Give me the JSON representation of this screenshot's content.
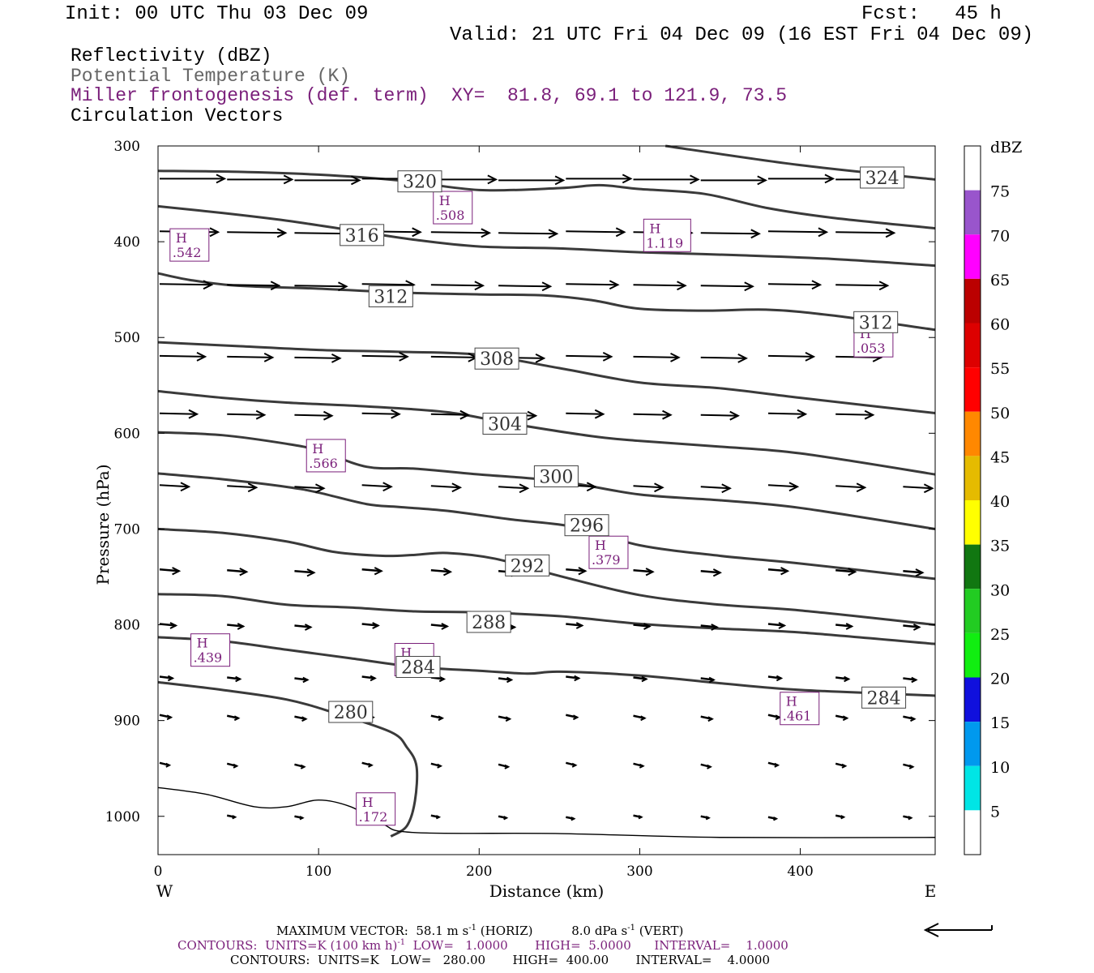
{
  "header": {
    "init": "Init: 00 UTC Thu 03 Dec 09",
    "fcst": "Fcst:   45 h",
    "valid": "Valid: 21 UTC Fri 04 Dec 09 (16 EST Fri 04 Dec 09)",
    "fields": [
      {
        "label": "Reflectivity (dBZ)",
        "color": "#000000"
      },
      {
        "label": "Potential Temperature (K)",
        "color": "#666666"
      },
      {
        "label": "Miller frontogenesis (def. term)",
        "color": "#7a1f7a"
      },
      {
        "label": "Circulation Vectors",
        "color": "#000000"
      }
    ],
    "xy": "XY=  81.8, 69.1 to 121.9, 73.5"
  },
  "chart_data": {
    "type": "cross-section",
    "xlabel": "Distance (km)",
    "ylabel": "Pressure (hPa)",
    "xlim": [
      0,
      484
    ],
    "ylim": [
      1040,
      300
    ],
    "x_ticks": [
      0,
      100,
      200,
      300,
      400
    ],
    "y_ticks": [
      300,
      400,
      500,
      600,
      700,
      800,
      900,
      1000
    ],
    "left_label": "W",
    "right_label": "E",
    "theta_contours": [
      {
        "label": "324",
        "label_at": [
          451,
          333
        ],
        "points": [
          [
            316,
            300
          ],
          [
            400,
            320
          ],
          [
            484,
            335
          ]
        ]
      },
      {
        "label": "320",
        "label_at": [
          163,
          337
        ],
        "points": [
          [
            0,
            326
          ],
          [
            50,
            327
          ],
          [
            100,
            330
          ],
          [
            150,
            336
          ],
          [
            200,
            346
          ],
          [
            250,
            344
          ],
          [
            275,
            341
          ],
          [
            300,
            345
          ],
          [
            340,
            350
          ],
          [
            380,
            365
          ],
          [
            420,
            375
          ],
          [
            484,
            386
          ]
        ]
      },
      {
        "label": "316",
        "label_at": [
          127,
          393
        ],
        "points": [
          [
            0,
            363
          ],
          [
            40,
            370
          ],
          [
            80,
            378
          ],
          [
            120,
            388
          ],
          [
            160,
            398
          ],
          [
            200,
            405
          ],
          [
            250,
            407
          ],
          [
            300,
            411
          ],
          [
            360,
            414
          ],
          [
            420,
            418
          ],
          [
            484,
            425
          ]
        ]
      },
      {
        "label": "312",
        "label_at": [
          145,
          457
        ],
        "points": [
          [
            0,
            433
          ],
          [
            20,
            440
          ],
          [
            50,
            446
          ],
          [
            100,
            449
          ],
          [
            150,
            453
          ],
          [
            200,
            455
          ],
          [
            240,
            456
          ],
          [
            270,
            461
          ],
          [
            300,
            470
          ],
          [
            340,
            472
          ],
          [
            380,
            471
          ],
          [
            420,
            477
          ],
          [
            484,
            492
          ]
        ]
      },
      {
        "label": "312",
        "label_at": [
          447,
          484
        ],
        "points": []
      },
      {
        "label": "308",
        "label_at": [
          211,
          522
        ],
        "points": [
          [
            0,
            505
          ],
          [
            50,
            509
          ],
          [
            100,
            513
          ],
          [
            150,
            515
          ],
          [
            200,
            518
          ],
          [
            250,
            532
          ],
          [
            300,
            547
          ],
          [
            350,
            553
          ],
          [
            400,
            563
          ],
          [
            484,
            579
          ]
        ]
      },
      {
        "label": "304",
        "label_at": [
          216,
          590
        ],
        "points": [
          [
            0,
            556
          ],
          [
            40,
            563
          ],
          [
            80,
            568
          ],
          [
            130,
            572
          ],
          [
            180,
            578
          ],
          [
            220,
            590
          ],
          [
            270,
            603
          ],
          [
            300,
            608
          ],
          [
            350,
            614
          ],
          [
            400,
            621
          ],
          [
            484,
            643
          ]
        ]
      },
      {
        "label": "300",
        "label_at": [
          248,
          645
        ],
        "points": [
          [
            0,
            599
          ],
          [
            40,
            602
          ],
          [
            80,
            611
          ],
          [
            100,
            618
          ],
          [
            130,
            635
          ],
          [
            160,
            637
          ],
          [
            200,
            643
          ],
          [
            250,
            650
          ],
          [
            300,
            664
          ],
          [
            350,
            670
          ],
          [
            400,
            678
          ],
          [
            484,
            700
          ]
        ]
      },
      {
        "label": "296",
        "label_at": [
          267,
          696
        ],
        "points": [
          [
            0,
            642
          ],
          [
            40,
            648
          ],
          [
            80,
            656
          ],
          [
            100,
            662
          ],
          [
            130,
            674
          ],
          [
            150,
            677
          ],
          [
            180,
            681
          ],
          [
            220,
            690
          ],
          [
            260,
            698
          ],
          [
            300,
            717
          ],
          [
            350,
            728
          ],
          [
            400,
            736
          ],
          [
            484,
            752
          ]
        ]
      },
      {
        "label": "292",
        "label_at": [
          230,
          738
        ],
        "points": [
          [
            0,
            700
          ],
          [
            40,
            704
          ],
          [
            80,
            713
          ],
          [
            110,
            724
          ],
          [
            140,
            728
          ],
          [
            160,
            727
          ],
          [
            180,
            725
          ],
          [
            210,
            731
          ],
          [
            250,
            749
          ],
          [
            300,
            769
          ],
          [
            350,
            779
          ],
          [
            400,
            785
          ],
          [
            484,
            800
          ]
        ]
      },
      {
        "label": "288",
        "label_at": [
          206,
          797
        ],
        "points": [
          [
            0,
            768
          ],
          [
            40,
            770
          ],
          [
            80,
            779
          ],
          [
            120,
            782
          ],
          [
            160,
            786
          ],
          [
            200,
            787
          ],
          [
            250,
            791
          ],
          [
            300,
            799
          ],
          [
            350,
            804
          ],
          [
            400,
            808
          ],
          [
            484,
            820
          ]
        ]
      },
      {
        "label": "284",
        "label_at": [
          162,
          844
        ],
        "points": [
          [
            0,
            813
          ],
          [
            40,
            817
          ],
          [
            80,
            826
          ],
          [
            120,
            835
          ],
          [
            160,
            844
          ],
          [
            200,
            848
          ],
          [
            230,
            851
          ],
          [
            250,
            849
          ],
          [
            300,
            853
          ],
          [
            350,
            861
          ],
          [
            400,
            868
          ],
          [
            484,
            874
          ]
        ]
      },
      {
        "label": "284",
        "label_at": [
          452,
          876
        ],
        "points": []
      },
      {
        "label": "280",
        "label_at": [
          120,
          891
        ],
        "points": [
          [
            0,
            860
          ],
          [
            40,
            868
          ],
          [
            80,
            878
          ],
          [
            110,
            892
          ],
          [
            145,
            912
          ],
          [
            155,
            928
          ],
          [
            161,
            948
          ],
          [
            160,
            984
          ],
          [
            155,
            1010
          ],
          [
            145,
            1021
          ]
        ]
      },
      {
        "label": "",
        "label_at": [
          0,
          0
        ],
        "points": [
          [
            0,
            970
          ],
          [
            30,
            977
          ],
          [
            60,
            990
          ],
          [
            80,
            990
          ],
          [
            100,
            983
          ],
          [
            120,
            990
          ],
          [
            140,
            1008
          ],
          [
            160,
            1017
          ],
          [
            250,
            1018
          ],
          [
            350,
            1022
          ],
          [
            484,
            1022
          ]
        ]
      }
    ],
    "frontogenesis_maxima": [
      {
        "label": "H",
        "value": ".508",
        "at": [
          174,
          372
        ]
      },
      {
        "label": "H",
        "value": "1.119",
        "at": [
          305,
          401
        ]
      },
      {
        "label": "H",
        "value": ".542",
        "at": [
          10,
          411
        ]
      },
      {
        "label": "H",
        "value": ".053",
        "at": [
          436,
          511
        ]
      },
      {
        "label": "H",
        "value": ".566",
        "at": [
          95,
          631
        ]
      },
      {
        "label": "H",
        "value": ".379",
        "at": [
          271,
          732
        ]
      },
      {
        "label": "H",
        "value": ".439",
        "at": [
          23,
          834
        ]
      },
      {
        "label": "H",
        "value": ".302",
        "at": [
          150,
          844
        ]
      },
      {
        "label": "H",
        "value": ".461",
        "at": [
          390,
          895
        ]
      },
      {
        "label": "H",
        "value": ".172",
        "at": [
          126,
          1000
        ]
      }
    ],
    "reflectivity_scale": {
      "unit": "dBZ",
      "labels": [
        "5",
        "10",
        "15",
        "20",
        "25",
        "30",
        "35",
        "40",
        "45",
        "50",
        "55",
        "60",
        "65",
        "70",
        "75"
      ],
      "colors": [
        "#ffffff",
        "#00e5e5",
        "#0099ee",
        "#1010dd",
        "#11ee11",
        "#22cc22",
        "#117711",
        "#ffff00",
        "#e5bb00",
        "#ff8800",
        "#ff0000",
        "#dd0000",
        "#bb0000",
        "#ff00ff",
        "#9955cc",
        "#ffffff"
      ]
    }
  },
  "footer": {
    "max_vector_label": "MAXIMUM VECTOR:",
    "max_vector_h": "58.1 m s",
    "max_vector_h_unit": "(HORIZ)",
    "max_vector_v": "8.0 dPa s",
    "max_vector_v_unit": "(VERT)",
    "contours1": "CONTOURS:  UNITS=K (100 km h)",
    "contours1_tail": "  LOW=   1.0000       HIGH=  5.0000      INTERVAL=    1.0000",
    "contours2": "CONTOURS:  UNITS=K   LOW=   280.00       HIGH=  400.00       INTERVAL=    4.0000",
    "superscript": "-1"
  }
}
